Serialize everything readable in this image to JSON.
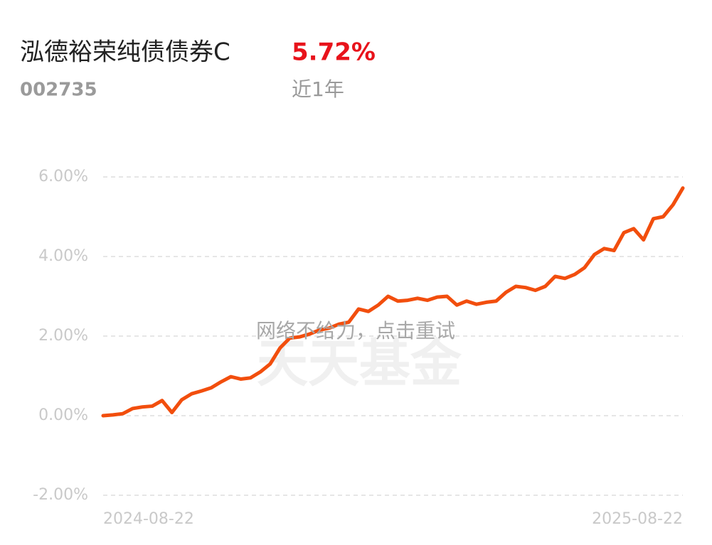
{
  "header": {
    "fund_name": "泓德裕荣纯债债券C",
    "return": "5.72%",
    "code": "002735",
    "period": "近1年"
  },
  "overlay_message": "网络不给力，点击重试",
  "watermark": "天天基金",
  "chart_data": {
    "type": "line",
    "color": "#f24e0d",
    "grid": true,
    "values": [
      0.0,
      0.02,
      0.05,
      0.18,
      0.22,
      0.24,
      0.38,
      0.08,
      0.4,
      0.55,
      0.62,
      0.7,
      0.85,
      0.98,
      0.92,
      0.95,
      1.1,
      1.3,
      1.7,
      1.95,
      1.98,
      2.05,
      2.15,
      2.2,
      2.3,
      2.35,
      2.68,
      2.62,
      2.78,
      3.0,
      2.88,
      2.9,
      2.95,
      2.9,
      2.98,
      3.0,
      2.78,
      2.88,
      2.8,
      2.85,
      2.88,
      3.1,
      3.25,
      3.22,
      3.15,
      3.25,
      3.5,
      3.45,
      3.55,
      3.72,
      4.05,
      4.2,
      4.15,
      4.6,
      4.7,
      4.42,
      4.95,
      5.0,
      5.3,
      5.72
    ],
    "xlim": [
      0,
      59
    ],
    "xticks": [
      {
        "value": 0,
        "label": "2024-08-22"
      },
      {
        "value": 59,
        "label": "2025-08-22"
      }
    ],
    "ylim": [
      -2,
      6
    ],
    "yticks": [
      {
        "value": -2,
        "label": "-2.00%"
      },
      {
        "value": 0,
        "label": "0.00%"
      },
      {
        "value": 2,
        "label": "2.00%"
      },
      {
        "value": 4,
        "label": "4.00%"
      },
      {
        "value": 6,
        "label": "6.00%"
      }
    ]
  }
}
